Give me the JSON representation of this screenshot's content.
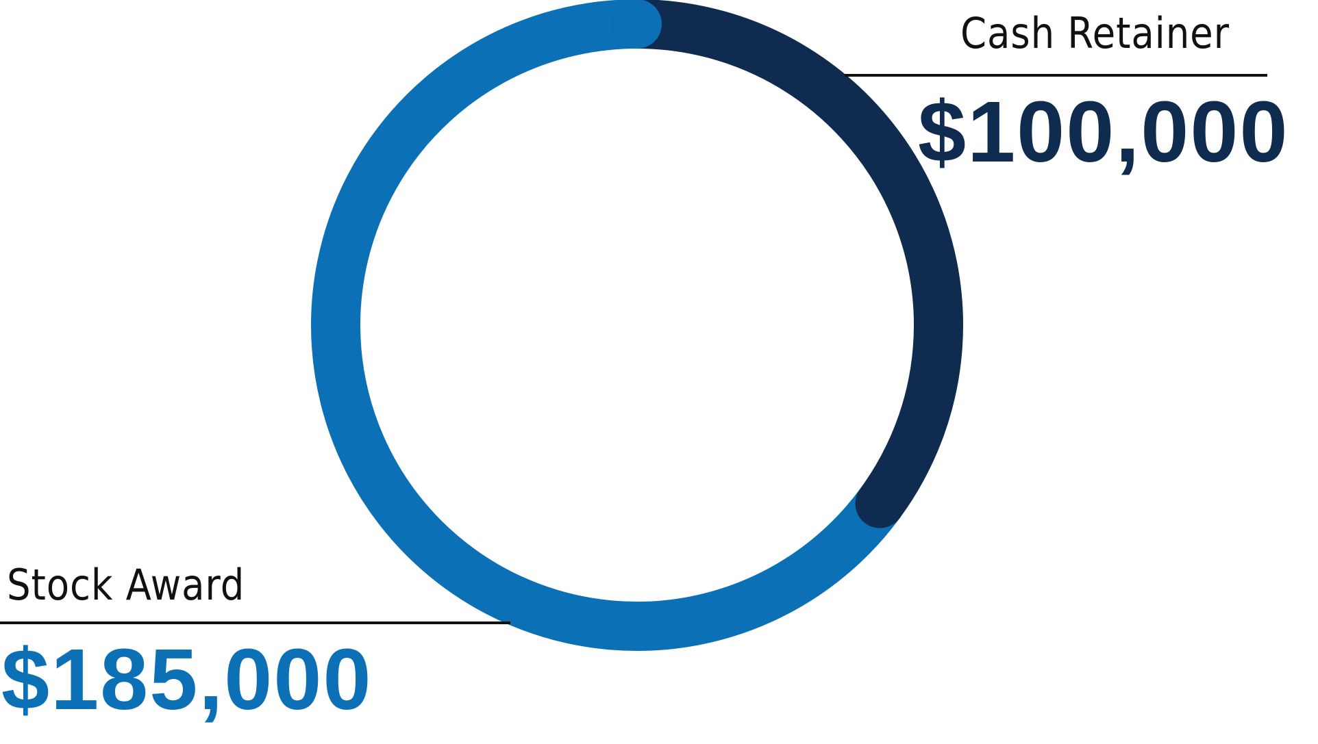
{
  "chart_data": {
    "type": "pie",
    "donut": true,
    "categories": [
      "Cash Retainer",
      "Stock Award"
    ],
    "values": [
      100000,
      185000
    ],
    "value_labels": [
      "$100,000",
      "$185,000"
    ],
    "colors": [
      "#0f2b4f",
      "#0b70b5"
    ],
    "legend": "none"
  }
}
